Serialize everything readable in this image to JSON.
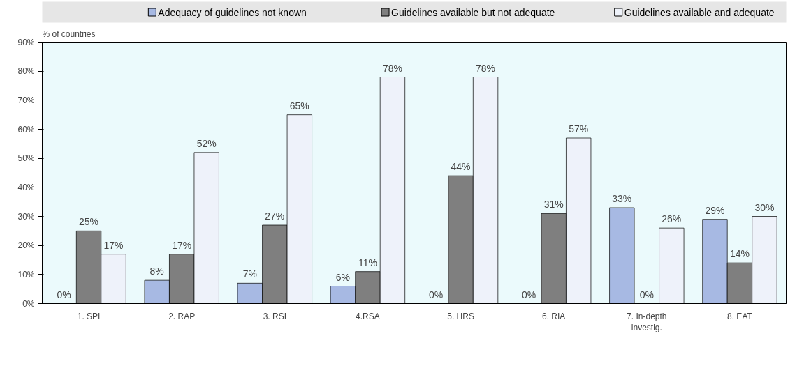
{
  "chart_data": {
    "type": "bar",
    "ylabel": "% of countries",
    "categories": [
      "1. SPI",
      "2. RAP",
      "3. RSI",
      "4.RSA",
      "5. HRS",
      "6. RIA",
      "7. In-depth investig.",
      "8. EAT"
    ],
    "series": [
      {
        "name": "Adequacy of guidelines not known",
        "color": "#a7b9e3",
        "values": [
          0,
          8,
          7,
          6,
          0,
          0,
          33,
          29
        ],
        "value_labels": [
          "0%",
          "8%",
          "7%",
          "6%",
          "0%",
          "0%",
          "33%",
          "29%"
        ]
      },
      {
        "name": "Guidelines available but not adequate",
        "color": "#7f7f7f",
        "values": [
          25,
          17,
          27,
          11,
          44,
          31,
          0,
          14
        ],
        "value_labels": [
          "25%",
          "17%",
          "27%",
          "11%",
          "44%",
          "31%",
          "0%",
          "14%"
        ]
      },
      {
        "name": "Guidelines available and adequate",
        "color": "#eef2fa",
        "values": [
          17,
          52,
          65,
          78,
          78,
          57,
          26,
          30
        ],
        "value_labels": [
          "17%",
          "52%",
          "65%",
          "78%",
          "78%",
          "57%",
          "26%",
          "30%"
        ]
      }
    ],
    "ylim": [
      0,
      90
    ],
    "yticks": [
      {
        "value": 0,
        "label": "0%"
      },
      {
        "value": 10,
        "label": "10%"
      },
      {
        "value": 20,
        "label": "20%"
      },
      {
        "value": 30,
        "label": "30%"
      },
      {
        "value": 40,
        "label": "40%"
      },
      {
        "value": 50,
        "label": "50%"
      },
      {
        "value": 60,
        "label": "60%"
      },
      {
        "value": 70,
        "label": "70%"
      },
      {
        "value": 80,
        "label": "80%"
      },
      {
        "value": 90,
        "label": "90%"
      }
    ],
    "legend": "top",
    "grid": false
  }
}
